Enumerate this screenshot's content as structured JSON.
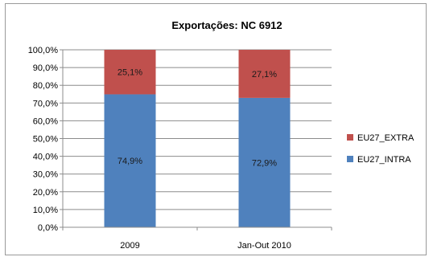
{
  "chart_data": {
    "type": "bar",
    "stacked": "percent",
    "title": "Exportações: NC 6912",
    "categories": [
      "2009",
      "Jan-Out 2010"
    ],
    "series": [
      {
        "name": "EU27_INTRA",
        "values": [
          74.9,
          72.9
        ],
        "labels": [
          "74,9%",
          "72,9%"
        ],
        "color": "#4f81bd"
      },
      {
        "name": "EU27_EXTRA",
        "values": [
          25.1,
          27.1
        ],
        "labels": [
          "25,1%",
          "27,1%"
        ],
        "color": "#c0504d"
      }
    ],
    "ylim": [
      0,
      100
    ],
    "yticks": [
      "0,0%",
      "10,0%",
      "20,0%",
      "30,0%",
      "40,0%",
      "50,0%",
      "60,0%",
      "70,0%",
      "80,0%",
      "90,0%",
      "100,0%"
    ],
    "legend_order": [
      "EU27_EXTRA",
      "EU27_INTRA"
    ],
    "legend_position": "right",
    "grid": true
  }
}
